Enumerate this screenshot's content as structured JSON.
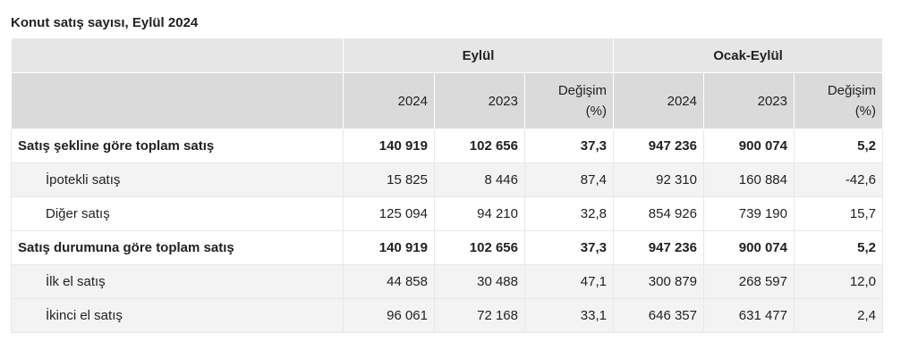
{
  "title": "Konut satış sayısı, Eylül 2024",
  "table": {
    "groups": [
      "Eylül",
      "Ocak-Eylül"
    ],
    "columns": [
      "2024",
      "2023",
      "Değişim (%)",
      "2024",
      "2023",
      "Değişim (%)"
    ],
    "rows": [
      {
        "label": "Satış şekline göre toplam satış",
        "bold": true,
        "cells": [
          "140 919",
          "102 656",
          "37,3",
          "947 236",
          "900 074",
          "5,2"
        ]
      },
      {
        "label": "İpotekli satış",
        "bold": false,
        "cells": [
          "15 825",
          "8 446",
          "87,4",
          "92 310",
          "160 884",
          "-42,6"
        ]
      },
      {
        "label": "Diğer satış",
        "bold": false,
        "cells": [
          "125 094",
          "94 210",
          "32,8",
          "854 926",
          "739 190",
          "15,7"
        ]
      },
      {
        "label": "Satış durumuna göre toplam satış",
        "bold": true,
        "cells": [
          "140 919",
          "102 656",
          "37,3",
          "947 236",
          "900 074",
          "5,2"
        ]
      },
      {
        "label": "İlk el satış",
        "bold": false,
        "cells": [
          "44 858",
          "30 488",
          "47,1",
          "300 879",
          "268 597",
          "12,0"
        ]
      },
      {
        "label": "İkinci el satış",
        "bold": false,
        "cells": [
          "96 061",
          "72 168",
          "33,1",
          "646 357",
          "631 477",
          "2,4"
        ]
      }
    ]
  }
}
